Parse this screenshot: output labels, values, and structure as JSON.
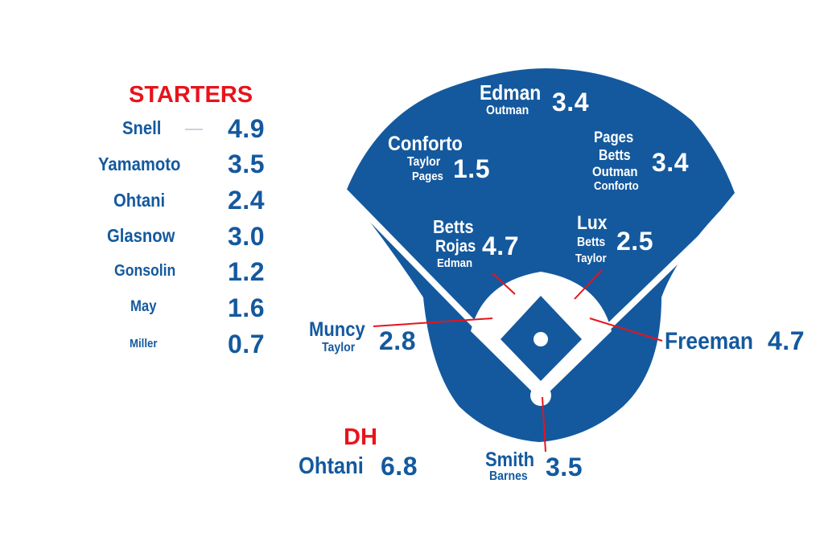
{
  "colors": {
    "field": "#14599e",
    "accent": "#e8131b",
    "infield": "#ffffff"
  },
  "starters": {
    "title": "STARTERS",
    "rows": [
      {
        "name": "Snell",
        "value": "4.9"
      },
      {
        "name": "Yamamoto",
        "value": "3.5"
      },
      {
        "name": "Ohtani",
        "value": "2.4"
      },
      {
        "name": "Glasnow",
        "value": "3.0"
      },
      {
        "name": "Gonsolin",
        "value": "1.2"
      },
      {
        "name": "May",
        "value": "1.6"
      },
      {
        "name": "Miller",
        "value": "0.7"
      }
    ]
  },
  "dh": {
    "title": "DH",
    "name": "Ohtani",
    "value": "6.8"
  },
  "positions": {
    "cf": {
      "name": "Edman",
      "backups": [
        "Outman"
      ],
      "value": "3.4"
    },
    "lf": {
      "name": "Conforto",
      "backups": [
        "Taylor",
        "Pages"
      ],
      "value": "1.5"
    },
    "rf": {
      "names": [
        "Pages",
        "Betts",
        "Outman",
        "Conforto"
      ],
      "value": "3.4"
    },
    "ss": {
      "names": [
        "Betts",
        "Rojas",
        "Edman"
      ],
      "value": "4.7"
    },
    "second": {
      "name": "Lux",
      "backups": [
        "Betts",
        "Taylor"
      ],
      "value": "2.5"
    },
    "third": {
      "name": "Muncy",
      "backups": [
        "Taylor"
      ],
      "value": "2.8"
    },
    "first": {
      "name": "Freeman",
      "value": "4.7"
    },
    "catcher": {
      "name": "Smith",
      "backups": [
        "Barnes"
      ],
      "value": "3.5"
    }
  }
}
